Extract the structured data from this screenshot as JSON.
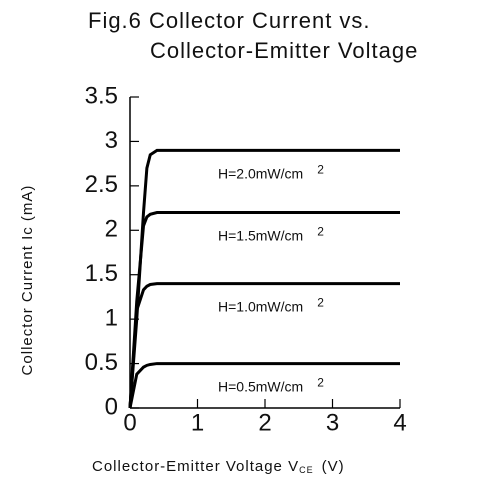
{
  "chart_data": {
    "type": "line",
    "title": [
      "Fig.6 Collector Current vs.",
      "Collector-Emitter Voltage"
    ],
    "y_label": "Collector Current Ic (mA)",
    "x_label": [
      "Collector-Emitter Voltage V",
      "CE",
      "(V)"
    ],
    "x": [
      0,
      0.1,
      0.2,
      0.25,
      0.3,
      0.4,
      1,
      2,
      3,
      4
    ],
    "series": [
      {
        "name": "H=2.0mW/cm",
        "sup": "2",
        "color": "#000000",
        "values": [
          0,
          1.0,
          2.2,
          2.7,
          2.85,
          2.9,
          2.9,
          2.9,
          2.9,
          2.9
        ]
      },
      {
        "name": "H=1.5mW/cm",
        "sup": "2",
        "color": "#000000",
        "values": [
          0,
          1.2,
          2.05,
          2.15,
          2.18,
          2.2,
          2.2,
          2.2,
          2.2,
          2.2
        ]
      },
      {
        "name": "H=1.0mW/cm",
        "sup": "2",
        "color": "#000000",
        "values": [
          0,
          1.1,
          1.33,
          1.37,
          1.39,
          1.4,
          1.4,
          1.4,
          1.4,
          1.4
        ]
      },
      {
        "name": "H=0.5mW/cm",
        "sup": "2",
        "color": "#000000",
        "values": [
          0,
          0.38,
          0.46,
          0.48,
          0.49,
          0.5,
          0.5,
          0.5,
          0.5,
          0.5
        ]
      }
    ],
    "xlim": [
      0,
      4
    ],
    "xticks": [
      0,
      1,
      2,
      3,
      4
    ],
    "ylim": [
      0,
      3.5
    ],
    "yticks": [
      0,
      0.5,
      1,
      1.5,
      2,
      2.5,
      3,
      3.5
    ]
  }
}
